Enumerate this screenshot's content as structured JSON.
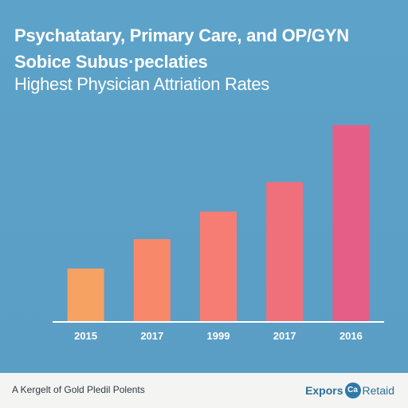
{
  "header": {
    "title": "Psychatatary, Primary Care, and OP/GYN Sobice Subus·peclaties",
    "subtitle": "Highest Physician Attriation Rates"
  },
  "chart_data": {
    "type": "bar",
    "categories": [
      "2015",
      "2017",
      "1999",
      "2017",
      "2016"
    ],
    "values": [
      29,
      45,
      60,
      76,
      107
    ],
    "ylim": [
      0,
      110
    ],
    "grid": false,
    "colors": [
      "#f5a263",
      "#f8886a",
      "#f67d73",
      "#ef6f7b",
      "#e45e87"
    ]
  },
  "footer": {
    "caption": "A Kergelt of Gold Pledil Polents",
    "brand_prefix": "Expors",
    "brand_mark": "Ca",
    "brand_suffix": "Retaid"
  }
}
